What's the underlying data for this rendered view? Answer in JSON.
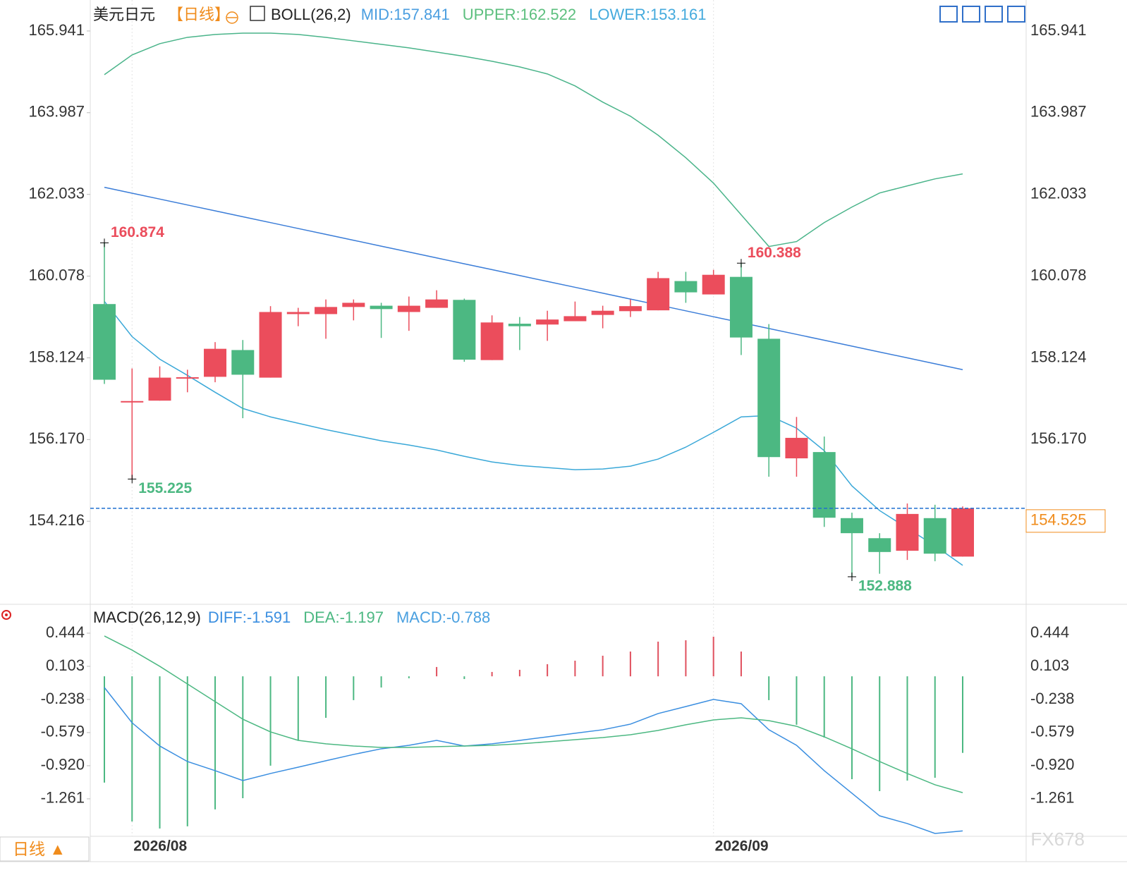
{
  "chart_data": [
    {
      "type": "candlestick",
      "title": "美元日元",
      "period": "【日线】",
      "indicator": "BOLL(26,2)",
      "categories": [
        null,
        "2026/08",
        null,
        null,
        null,
        null,
        null,
        null,
        null,
        null,
        null,
        null,
        null,
        null,
        null,
        null,
        null,
        null,
        null,
        null,
        null,
        null,
        "2026/09",
        null,
        null,
        null,
        null,
        null,
        null,
        null,
        null,
        null
      ],
      "candles": {
        "open": [
          159.41,
          157.07,
          157.1,
          157.63,
          157.67,
          158.31,
          157.65,
          159.17,
          159.17,
          159.34,
          159.37,
          159.22,
          159.32,
          159.51,
          158.07,
          158.94,
          158.92,
          159.0,
          159.15,
          159.24,
          159.26,
          159.96,
          159.64,
          160.06,
          158.58,
          155.72,
          155.87,
          154.29,
          153.81,
          153.51,
          154.29,
          153.37
        ],
        "high": [
          160.874,
          157.87,
          157.92,
          157.84,
          158.5,
          158.55,
          159.36,
          159.32,
          159.52,
          159.52,
          159.44,
          159.59,
          159.74,
          159.54,
          159.14,
          159.1,
          159.25,
          159.47,
          159.37,
          159.52,
          160.18,
          160.18,
          160.23,
          160.388,
          158.93,
          156.71,
          156.24,
          154.42,
          153.93,
          154.64,
          154.61,
          154.57
        ],
        "low": [
          157.5,
          155.225,
          157.1,
          157.3,
          157.54,
          156.68,
          157.65,
          158.88,
          158.58,
          159.02,
          158.6,
          158.77,
          159.32,
          158.03,
          158.07,
          158.31,
          158.53,
          159.0,
          158.83,
          159.1,
          159.26,
          159.44,
          159.64,
          158.19,
          155.28,
          155.28,
          154.08,
          152.888,
          152.96,
          153.29,
          153.26,
          153.37
        ],
        "close": [
          157.6,
          157.09,
          157.65,
          157.66,
          158.34,
          157.72,
          159.22,
          159.22,
          159.34,
          159.44,
          159.29,
          159.37,
          159.52,
          158.08,
          158.97,
          158.88,
          159.04,
          159.12,
          159.25,
          159.36,
          160.03,
          159.69,
          160.11,
          158.61,
          155.75,
          156.21,
          154.3,
          153.93,
          153.48,
          154.39,
          153.44,
          154.525
        ]
      },
      "up_color": "#eb4d5c",
      "down_color": "#4cb882",
      "series": [
        {
          "name": "MID:157.841",
          "color": "#3b7dd8",
          "legend_color": "#4a9ee0",
          "values": [
            162.202,
            162.061,
            161.921,
            161.78,
            161.639,
            161.499,
            161.358,
            161.217,
            161.077,
            160.936,
            160.795,
            160.655,
            160.514,
            160.373,
            160.233,
            160.092,
            159.951,
            159.811,
            159.67,
            159.529,
            159.389,
            159.248,
            159.107,
            158.967,
            158.826,
            158.685,
            158.545,
            158.404,
            158.263,
            158.123,
            157.982,
            157.841
          ]
        },
        {
          "name": "UPPER:162.522",
          "color": "#4ab48a",
          "legend_color": "#5cbf7e",
          "values": [
            164.897,
            165.368,
            165.638,
            165.789,
            165.857,
            165.89,
            165.89,
            165.857,
            165.789,
            165.705,
            165.621,
            165.537,
            165.436,
            165.335,
            165.217,
            165.082,
            164.914,
            164.627,
            164.24,
            163.903,
            163.448,
            162.909,
            162.303,
            161.545,
            160.787,
            160.905,
            161.36,
            161.73,
            162.067,
            162.236,
            162.404,
            162.522
          ]
        },
        {
          "name": "LOWER:153.161",
          "color": "#3aa8d8",
          "legend_color": "#44aadd",
          "values": [
            159.473,
            158.631,
            158.092,
            157.705,
            157.3,
            156.913,
            156.711,
            156.559,
            156.408,
            156.273,
            156.139,
            156.038,
            155.92,
            155.768,
            155.634,
            155.55,
            155.499,
            155.449,
            155.466,
            155.533,
            155.702,
            155.988,
            156.342,
            156.712,
            156.745,
            156.442,
            155.903,
            155.061,
            154.471,
            154.05,
            153.629,
            153.161
          ]
        }
      ],
      "last_price": 154.525,
      "ylim": [
        152.263,
        166.682
      ],
      "yticks": [
        165.941,
        163.987,
        162.033,
        160.078,
        158.124,
        {
          "value": 156.17,
          "label": "156.170"
        },
        154.216
      ]
    },
    {
      "type": "macd",
      "indicator": "MACD(26,12,9)",
      "series": [
        {
          "name": "DIFF:-1.591",
          "color": "#3a8ee0",
          "values": [
            -0.115,
            -0.478,
            -0.717,
            -0.877,
            -0.971,
            -1.073,
            -1.0,
            -0.935,
            -0.869,
            -0.804,
            -0.746,
            -0.71,
            -0.659,
            -0.717,
            -0.695,
            -0.659,
            -0.623,
            -0.586,
            -0.55,
            -0.492,
            -0.383,
            -0.311,
            -0.238,
            -0.282,
            -0.55,
            -0.71,
            -0.971,
            -1.203,
            -1.436,
            -1.515,
            -1.617,
            -1.591
          ]
        },
        {
          "name": "DEA:-1.197",
          "color": "#4cb882",
          "values": [
            0.415,
            0.27,
            0.103,
            -0.079,
            -0.26,
            -0.441,
            -0.572,
            -0.659,
            -0.695,
            -0.717,
            -0.732,
            -0.732,
            -0.724,
            -0.717,
            -0.71,
            -0.695,
            -0.674,
            -0.652,
            -0.63,
            -0.601,
            -0.557,
            -0.499,
            -0.449,
            -0.427,
            -0.456,
            -0.514,
            -0.623,
            -0.746,
            -0.877,
            -1.0,
            -1.116,
            -1.197
          ]
        }
      ],
      "histogram": {
        "name": "MACD:-0.788",
        "color": "#4aa0e0",
        "values": [
          -1.094,
          -1.494,
          -1.566,
          -1.544,
          -1.37,
          -1.254,
          -0.92,
          -0.659,
          -0.427,
          -0.245,
          -0.115,
          -0.02,
          0.096,
          -0.028,
          0.045,
          0.067,
          0.125,
          0.161,
          0.212,
          0.255,
          0.357,
          0.371,
          0.408,
          0.255,
          -0.245,
          -0.499,
          -0.63,
          -1.058,
          -1.182,
          -1.073,
          -1.044,
          -0.788
        ]
      },
      "up_color": "#e0505e",
      "down_color": "#4cb882",
      "ylim": [
        -1.639,
        0.734
      ],
      "yticks": [
        0.444,
        0.103,
        {
          "value": -0.238,
          "label": "-0.238"
        },
        {
          "value": -0.579,
          "label": "-0.579"
        },
        {
          "value": -0.92,
          "label": "-0.920"
        },
        -1.261
      ]
    }
  ],
  "period_button": "日线 ▲",
  "watermark": "FX678"
}
